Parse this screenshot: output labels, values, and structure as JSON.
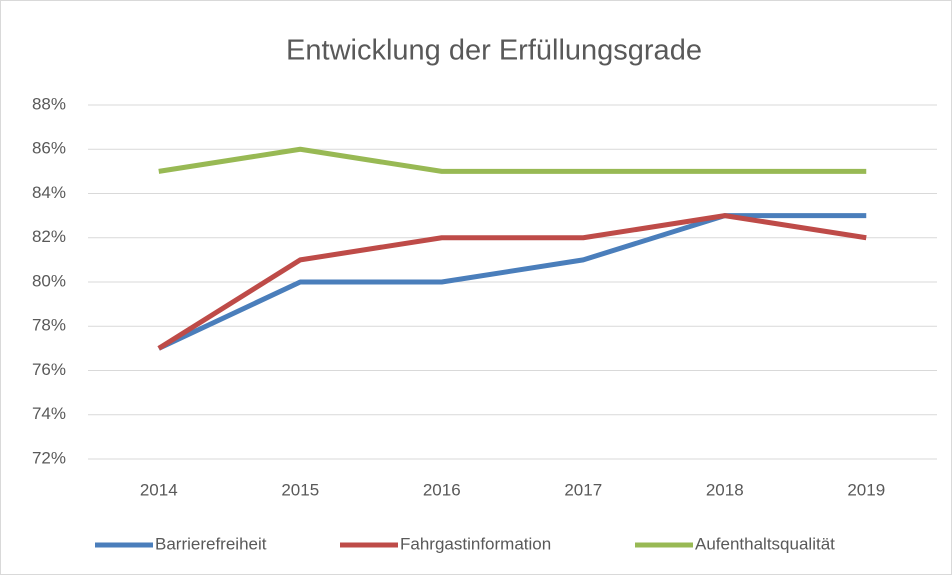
{
  "chart_data": {
    "type": "line",
    "title": "Entwicklung der Erfüllungsgrade",
    "categories": [
      "2014",
      "2015",
      "2016",
      "2017",
      "2018",
      "2019"
    ],
    "series": [
      {
        "name": "Barrierefreiheit",
        "color": "#4a7ebb",
        "values": [
          77,
          80,
          80,
          81,
          83,
          83
        ]
      },
      {
        "name": "Fahrgastinformation",
        "color": "#be4b48",
        "values": [
          77,
          81,
          82,
          82,
          83,
          82
        ]
      },
      {
        "name": "Aufenthaltsqualität",
        "color": "#98b954",
        "values": [
          85,
          86,
          85,
          85,
          85,
          85
        ]
      }
    ],
    "ylim": [
      72,
      88
    ],
    "yticks": [
      {
        "value": 72,
        "label": "72%"
      },
      {
        "value": 74,
        "label": "74%"
      },
      {
        "value": 76,
        "label": "76%"
      },
      {
        "value": 78,
        "label": "78%"
      },
      {
        "value": 80,
        "label": "80%"
      },
      {
        "value": 82,
        "label": "82%"
      },
      {
        "value": 84,
        "label": "84%"
      },
      {
        "value": 86,
        "label": "86%"
      },
      {
        "value": 88,
        "label": "88%"
      }
    ],
    "grid": true,
    "legend": "bottom"
  }
}
